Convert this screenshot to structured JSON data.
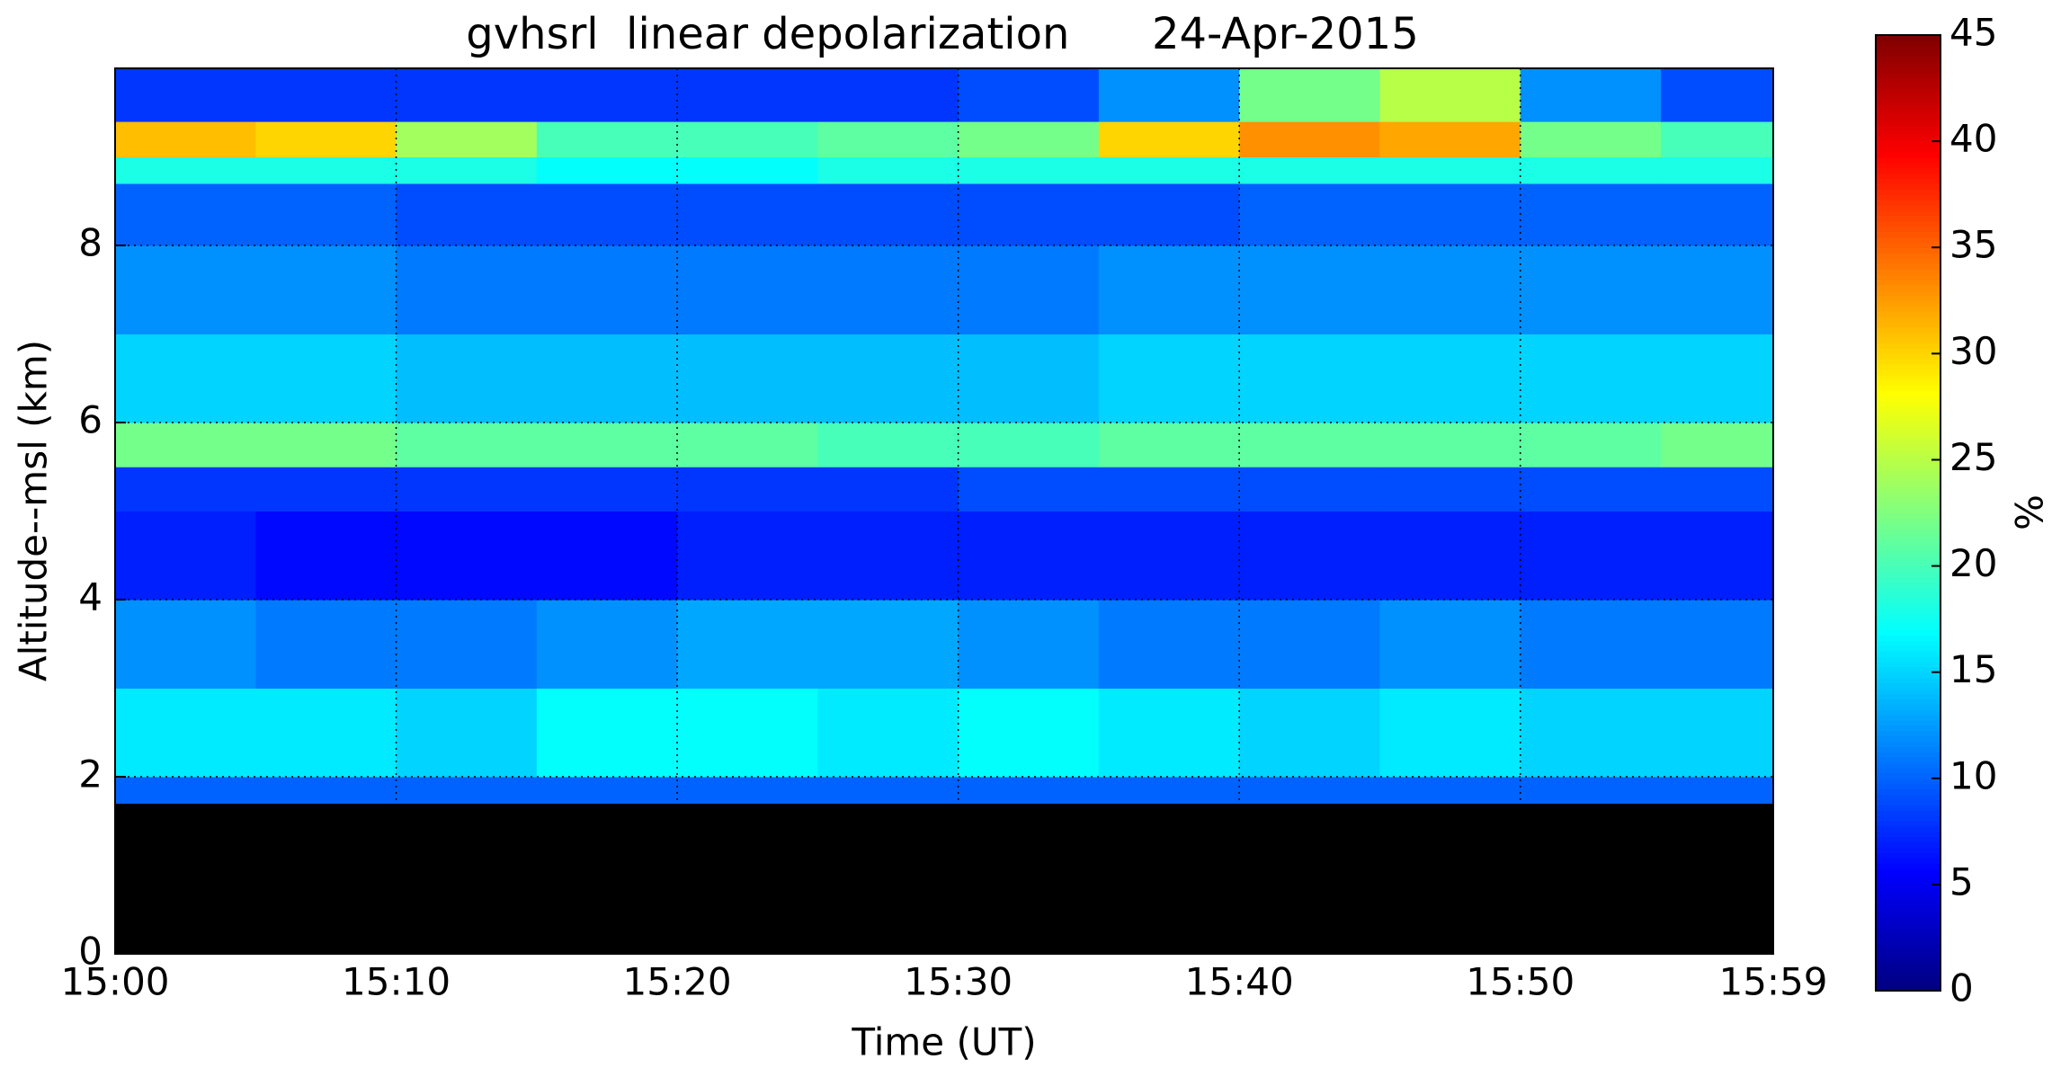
{
  "chart_data": {
    "type": "heatmap",
    "title": "gvhsrl  linear depolarization      24-Apr-2015",
    "x_label": "Time (UT)",
    "y_label": "Altitude--msl (km)",
    "colorbar_label": "%",
    "xlim": [
      0,
      59
    ],
    "xticks": [
      {
        "value": 0,
        "label": "15:00"
      },
      {
        "value": 10,
        "label": "15:10"
      },
      {
        "value": 20,
        "label": "15:20"
      },
      {
        "value": 30,
        "label": "15:30"
      },
      {
        "value": 40,
        "label": "15:40"
      },
      {
        "value": 50,
        "label": "15:50"
      },
      {
        "value": 59,
        "label": "15:59"
      }
    ],
    "ylim": [
      0,
      10
    ],
    "yticks": [
      0,
      2,
      4,
      6,
      8
    ],
    "clim": [
      0,
      45
    ],
    "cticks": [
      0,
      5,
      10,
      15,
      20,
      25,
      30,
      35,
      40,
      45
    ],
    "colormap": "jet",
    "grid": true,
    "x_edges": [
      0,
      5,
      10,
      15,
      20,
      25,
      30,
      35,
      40,
      45,
      50,
      55,
      59
    ],
    "y_edges": [
      0,
      1.7,
      2.0,
      3.0,
      4.0,
      5.0,
      5.5,
      6.0,
      7.0,
      8.0,
      8.7,
      9.0,
      9.4,
      10.0
    ],
    "z": [
      [
        null,
        null,
        null,
        null,
        null,
        null,
        null,
        null,
        null,
        null,
        null,
        null
      ],
      [
        10,
        10,
        10,
        10,
        10,
        10,
        10,
        10,
        10,
        10,
        10,
        10
      ],
      [
        16,
        16,
        15,
        17,
        17,
        16,
        17,
        16,
        15,
        16,
        15,
        15
      ],
      [
        12,
        11,
        11,
        12,
        13,
        13,
        12,
        11,
        11,
        12,
        11,
        11
      ],
      [
        7,
        6,
        6,
        6,
        7,
        7,
        7,
        7,
        7,
        7,
        7,
        7
      ],
      [
        8,
        8,
        8,
        8,
        8,
        8,
        9,
        9,
        9,
        9,
        9,
        9
      ],
      [
        22,
        22,
        21,
        21,
        21,
        20,
        20,
        21,
        21,
        21,
        21,
        22
      ],
      [
        15,
        15,
        14,
        14,
        14,
        14,
        14,
        15,
        15,
        15,
        15,
        15
      ],
      [
        12,
        12,
        11,
        11,
        11,
        11,
        11,
        12,
        12,
        12,
        12,
        12
      ],
      [
        10,
        10,
        9,
        9,
        9,
        9,
        9,
        9,
        10,
        10,
        10,
        10
      ],
      [
        18,
        18,
        18,
        17,
        17,
        18,
        18,
        18,
        18,
        18,
        18,
        18
      ],
      [
        31,
        30,
        24,
        20,
        20,
        21,
        22,
        30,
        33,
        32,
        22,
        20
      ],
      [
        8,
        8,
        8,
        8,
        8,
        8,
        9,
        12,
        22,
        25,
        12,
        9
      ]
    ]
  }
}
